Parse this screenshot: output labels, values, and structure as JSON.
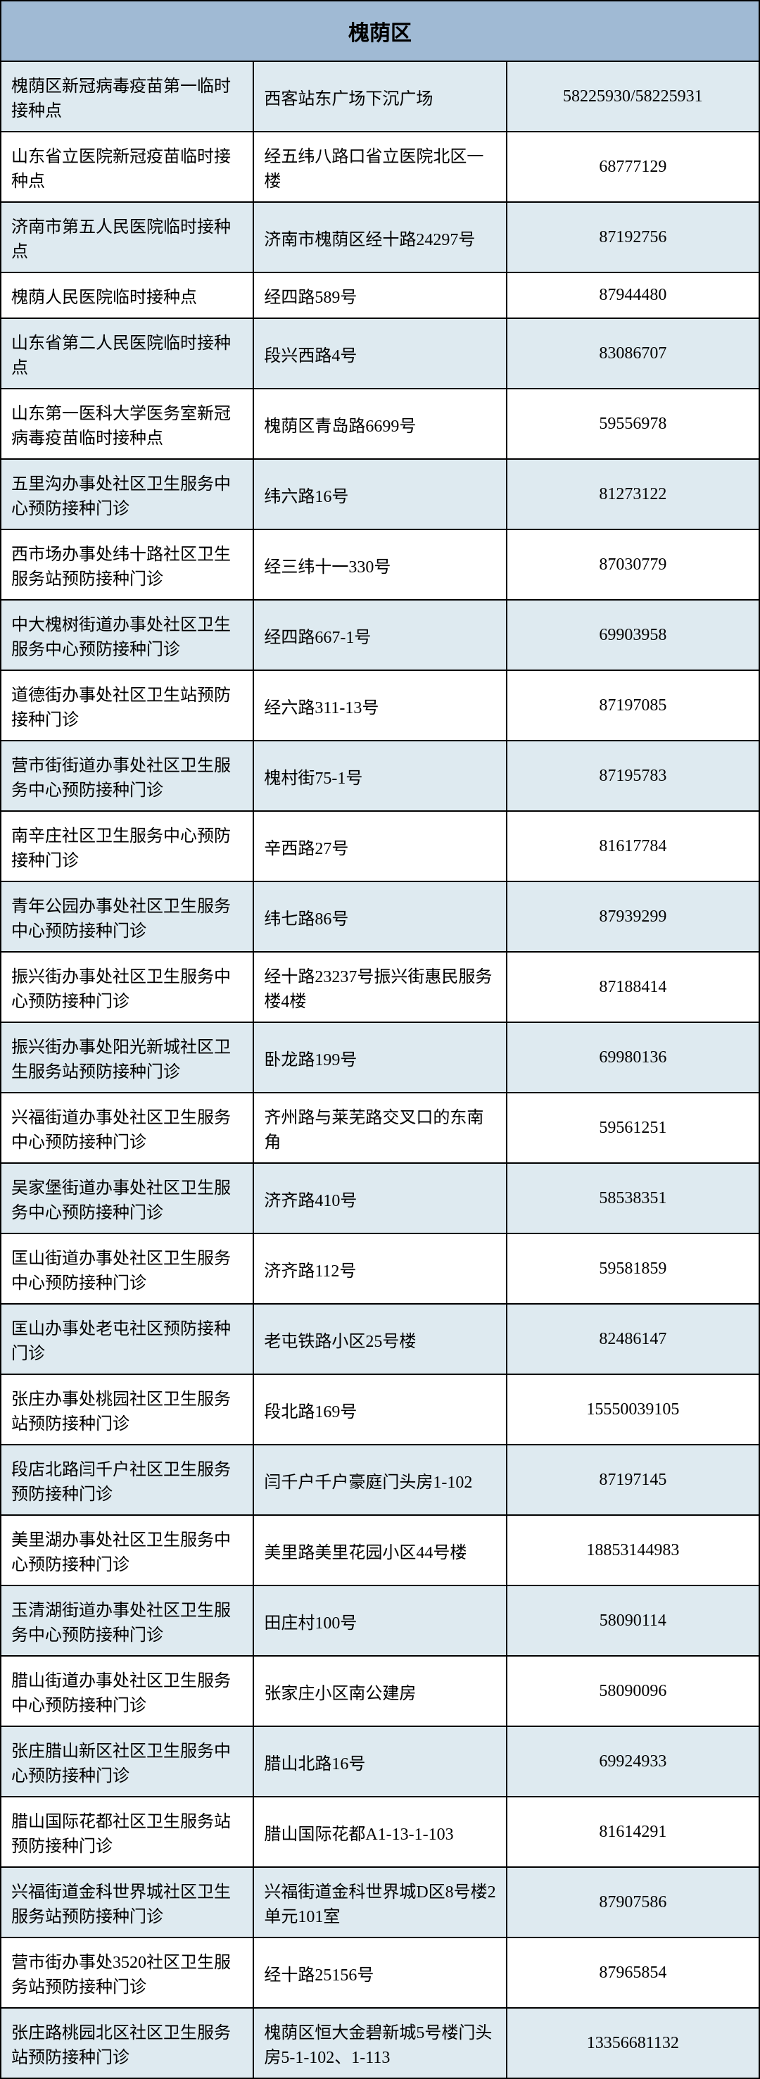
{
  "table": {
    "header": "槐荫区",
    "header_bg_color": "#a0bad4",
    "row_even_bg_color": "#deeaf0",
    "row_odd_bg_color": "#ffffff",
    "border_color": "#000000",
    "columns": [
      "name",
      "address",
      "phone"
    ],
    "rows": [
      {
        "name": "槐荫区新冠病毒疫苗第一临时接种点",
        "address": "西客站东广场下沉广场",
        "phone": "58225930/58225931"
      },
      {
        "name": "山东省立医院新冠疫苗临时接种点",
        "address": "经五纬八路口省立医院北区一楼",
        "phone": "68777129"
      },
      {
        "name": "济南市第五人民医院临时接种点",
        "address": "济南市槐荫区经十路24297号",
        "phone": "87192756"
      },
      {
        "name": "槐荫人民医院临时接种点",
        "address": "经四路589号",
        "phone": "87944480"
      },
      {
        "name": "山东省第二人民医院临时接种点",
        "address": "段兴西路4号",
        "phone": "83086707"
      },
      {
        "name": "山东第一医科大学医务室新冠病毒疫苗临时接种点",
        "address": "槐荫区青岛路6699号",
        "phone": "59556978"
      },
      {
        "name": "五里沟办事处社区卫生服务中心预防接种门诊",
        "address": "纬六路16号",
        "phone": "81273122"
      },
      {
        "name": "西市场办事处纬十路社区卫生服务站预防接种门诊",
        "address": "经三纬十一330号",
        "phone": "87030779"
      },
      {
        "name": "中大槐树街道办事处社区卫生服务中心预防接种门诊",
        "address": "经四路667-1号",
        "phone": "69903958"
      },
      {
        "name": "道德街办事处社区卫生站预防接种门诊",
        "address": "经六路311-13号",
        "phone": "87197085"
      },
      {
        "name": "营市街街道办事处社区卫生服务中心预防接种门诊",
        "address": "槐村街75-1号",
        "phone": "87195783"
      },
      {
        "name": "南辛庄社区卫生服务中心预防接种门诊",
        "address": "辛西路27号",
        "phone": "81617784"
      },
      {
        "name": "青年公园办事处社区卫生服务中心预防接种门诊",
        "address": "纬七路86号",
        "phone": "87939299"
      },
      {
        "name": "振兴街办事处社区卫生服务中心预防接种门诊",
        "address": "经十路23237号振兴街惠民服务楼4楼",
        "phone": "87188414"
      },
      {
        "name": "振兴街办事处阳光新城社区卫生服务站预防接种门诊",
        "address": "卧龙路199号",
        "phone": "69980136"
      },
      {
        "name": "兴福街道办事处社区卫生服务中心预防接种门诊",
        "address": "齐州路与莱芜路交叉口的东南角",
        "phone": "59561251"
      },
      {
        "name": "吴家堡街道办事处社区卫生服务中心预防接种门诊",
        "address": "济齐路410号",
        "phone": "58538351"
      },
      {
        "name": "匡山街道办事处社区卫生服务中心预防接种门诊",
        "address": "济齐路112号",
        "phone": "59581859"
      },
      {
        "name": "匡山办事处老屯社区预防接种门诊",
        "address": "老屯铁路小区25号楼",
        "phone": "82486147"
      },
      {
        "name": "张庄办事处桃园社区卫生服务站预防接种门诊",
        "address": "段北路169号",
        "phone": "15550039105"
      },
      {
        "name": "段店北路闫千户社区卫生服务预防接种门诊",
        "address": "闫千户千户豪庭门头房1-102",
        "phone": "87197145"
      },
      {
        "name": "美里湖办事处社区卫生服务中心预防接种门诊",
        "address": "美里路美里花园小区44号楼",
        "phone": "18853144983"
      },
      {
        "name": "玉清湖街道办事处社区卫生服务中心预防接种门诊",
        "address": "田庄村100号",
        "phone": "58090114"
      },
      {
        "name": "腊山街道办事处社区卫生服务中心预防接种门诊",
        "address": "张家庄小区南公建房",
        "phone": "58090096"
      },
      {
        "name": "张庄腊山新区社区卫生服务中心预防接种门诊",
        "address": "腊山北路16号",
        "phone": "69924933"
      },
      {
        "name": "腊山国际花都社区卫生服务站预防接种门诊",
        "address": "腊山国际花都A1-13-1-103",
        "phone": "81614291"
      },
      {
        "name": "兴福街道金科世界城社区卫生服务站预防接种门诊",
        "address": "兴福街道金科世界城D区8号楼2单元101室",
        "phone": "87907586"
      },
      {
        "name": "营市街办事处3520社区卫生服务站预防接种门诊",
        "address": "经十路25156号",
        "phone": "87965854"
      },
      {
        "name": "张庄路桃园北区社区卫生服务站预防接种门诊",
        "address": "槐荫区恒大金碧新城5号楼门头房5-1-102、1-113",
        "phone": "13356681132"
      }
    ]
  }
}
